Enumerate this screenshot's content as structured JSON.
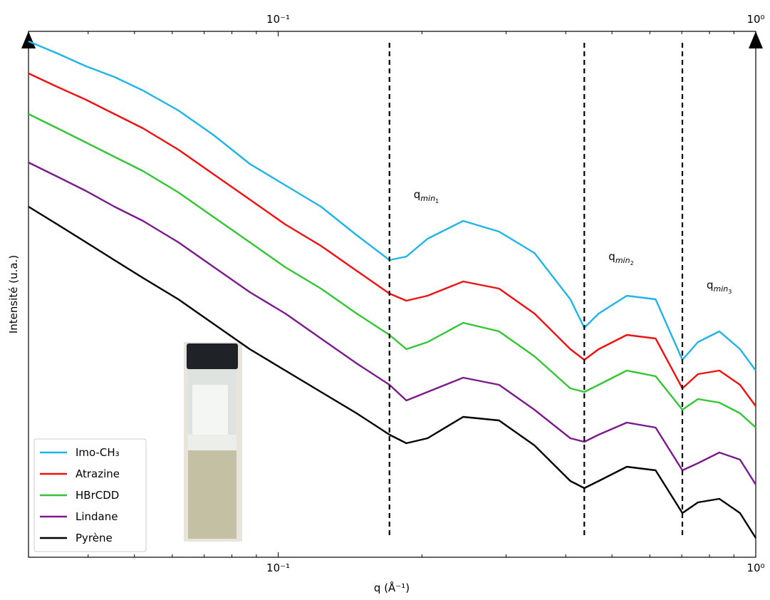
{
  "chart_data": {
    "type": "line",
    "xlabel": "q (Å⁻¹)",
    "ylabel": "Intensité (u.a.)",
    "xscale": "log",
    "xlim": [
      0.03,
      1.0
    ],
    "xticks": [
      {
        "value": 0.1,
        "label": "10⁻¹"
      },
      {
        "value": 1.0,
        "label": "10⁰"
      }
    ],
    "xminorticks": [
      0.04,
      0.05,
      0.06,
      0.07,
      0.08,
      0.09,
      0.2,
      0.3,
      0.4,
      0.5,
      0.6,
      0.7,
      0.8,
      0.9
    ],
    "ylim": [
      0,
      738
    ],
    "legend": "lower left",
    "x": [
      0.03,
      0.0345,
      0.0396,
      0.0454,
      0.0521,
      0.0618,
      0.0734,
      0.0872,
      0.1035,
      0.1229,
      0.146,
      0.171,
      0.1855,
      0.2055,
      0.244,
      0.29,
      0.344,
      0.409,
      0.4375,
      0.469,
      0.537,
      0.617,
      0.702,
      0.757,
      0.839,
      0.927,
      1.0
    ],
    "series": [
      {
        "name": "Imo-CH₃",
        "color": "#1fb4ea",
        "values": [
          724,
          707,
          689,
          674,
          655,
          627,
          592,
          552,
          522,
          492,
          452,
          417,
          422,
          447,
          472,
          457,
          427,
          362,
          322,
          342,
          367,
          362,
          277,
          302,
          317,
          292,
          262
        ]
      },
      {
        "name": "Atrazine",
        "color": "#f01010",
        "values": [
          679,
          660,
          642,
          622,
          602,
          572,
          537,
          502,
          467,
          437,
          402,
          370,
          360,
          367,
          387,
          377,
          342,
          292,
          277,
          292,
          312,
          307,
          237,
          257,
          262,
          242,
          212
        ]
      },
      {
        "name": "HBrCDD",
        "color": "#33c633",
        "values": [
          622,
          602,
          582,
          562,
          542,
          512,
          477,
          442,
          407,
          377,
          342,
          312,
          292,
          302,
          329,
          317,
          282,
          237,
          232,
          242,
          262,
          254,
          207,
          222,
          217,
          202,
          182
        ]
      },
      {
        "name": "Lindane",
        "color": "#7b1a8c",
        "values": [
          554,
          534,
          514,
          492,
          472,
          442,
          407,
          372,
          342,
          307,
          272,
          242,
          220,
          232,
          252,
          242,
          207,
          167,
          162,
          172,
          189,
          182,
          122,
          132,
          147,
          137,
          102
        ]
      },
      {
        "name": "Pyrène",
        "color": "#000000",
        "values": [
          492,
          467,
          442,
          417,
          392,
          362,
          327,
          292,
          262,
          232,
          202,
          172,
          160,
          167,
          197,
          192,
          157,
          107,
          97,
          107,
          127,
          122,
          62,
          77,
          82,
          62,
          27
        ]
      }
    ],
    "vlines": [
      {
        "x": 0.171,
        "label": "q",
        "sub": "min",
        "index": "1"
      },
      {
        "x": 0.4375,
        "label": "q",
        "sub": "min",
        "index": "2"
      },
      {
        "x": 0.702,
        "label": "q",
        "sub": "min",
        "index": "3"
      }
    ]
  }
}
